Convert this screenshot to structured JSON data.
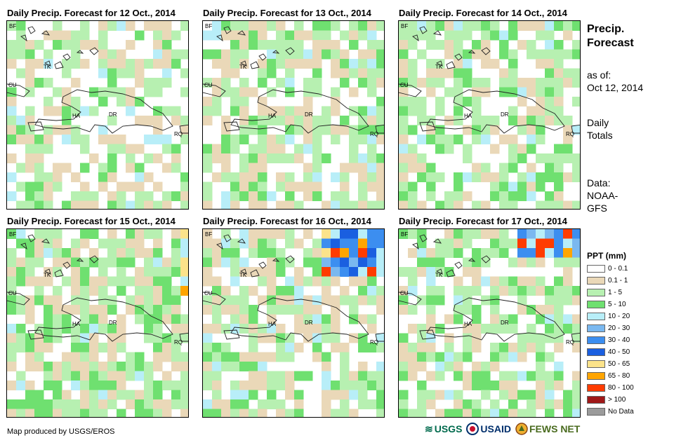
{
  "panels": [
    {
      "title": "Daily Precip. Forecast for 12 Oct., 2014"
    },
    {
      "title": "Daily Precip. Forecast for 13 Oct., 2014"
    },
    {
      "title": "Daily Precip. Forecast for 14 Oct., 2014"
    },
    {
      "title": "Daily Precip. Forecast for 15 Oct., 2014"
    },
    {
      "title": "Daily Precip. Forecast for 16 Oct., 2014"
    },
    {
      "title": "Daily Precip. Forecast for 17 Oct., 2014"
    }
  ],
  "map_labels": {
    "bf": "BF",
    "tk": "TK",
    "cu": "CU",
    "ha": "HA",
    "dr": "DR",
    "rq": "RQ"
  },
  "sidebar": {
    "title_line1": "Precip.",
    "title_line2": "Forecast",
    "asof_line1": "as of:",
    "asof_line2": "Oct 12, 2014",
    "totals_line1": "Daily",
    "totals_line2": "Totals",
    "data_line1": "Data:",
    "data_line2": "NOAA-",
    "data_line3": "GFS"
  },
  "legend": {
    "title": "PPT (mm)",
    "items": [
      {
        "label": "0 - 0.1",
        "color": "#ffffff"
      },
      {
        "label": "0.1 - 1",
        "color": "#ead8b8"
      },
      {
        "label": "1 - 5",
        "color": "#b7f0b1"
      },
      {
        "label": "5 - 10",
        "color": "#6fe070"
      },
      {
        "label": "10 - 20",
        "color": "#b8eef8"
      },
      {
        "label": "20 - 30",
        "color": "#7ab8f0"
      },
      {
        "label": "30 - 40",
        "color": "#3c8ef0"
      },
      {
        "label": "40 - 50",
        "color": "#1a5fe0"
      },
      {
        "label": "50 - 65",
        "color": "#fce38a"
      },
      {
        "label": "65 - 80",
        "color": "#ffa500"
      },
      {
        "label": "80 - 100",
        "color": "#ff3c00"
      },
      {
        "label": "> 100",
        "color": "#a01818"
      },
      {
        "label": "No Data",
        "color": "#9b9b9b"
      }
    ]
  },
  "credit": "Map produced by USGS/EROS",
  "logos": {
    "usgs": "USGS",
    "usaid": "USAID",
    "fewsnet": "FEWS NET"
  }
}
